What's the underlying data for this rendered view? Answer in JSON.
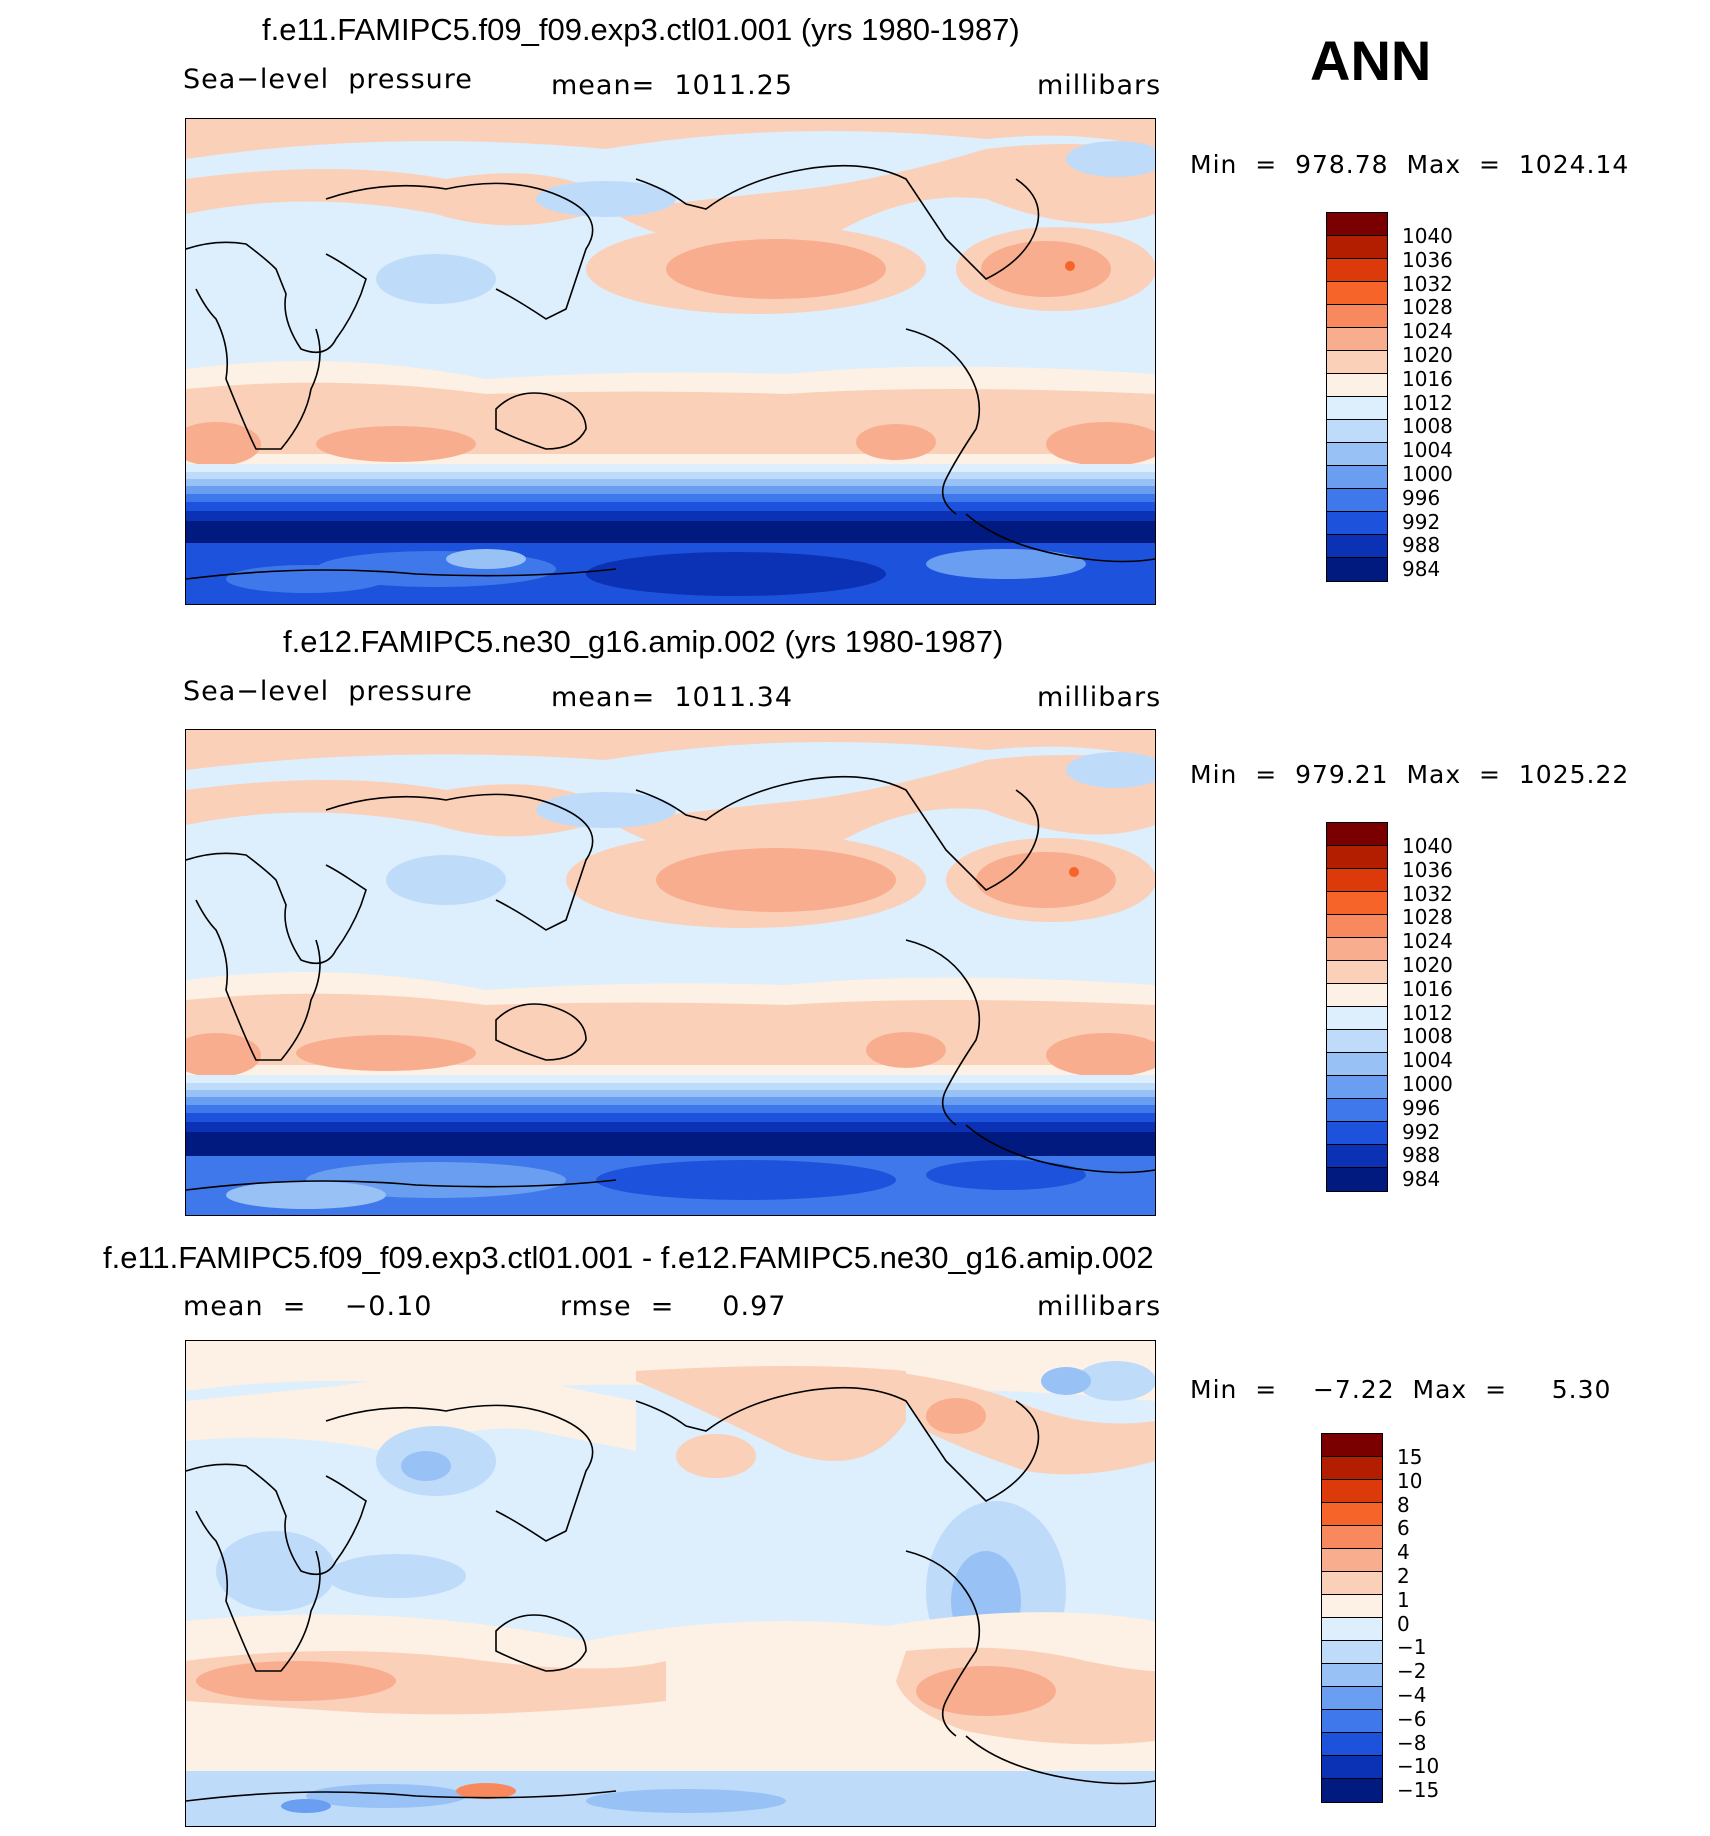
{
  "season": "ANN",
  "panels": [
    {
      "title": "f.e11.FAMIPC5.f09_f09.exp3.ctl01.001 (yrs 1980-1987)",
      "left_label": "Sea−level  pressure",
      "center_label": "mean=  1011.25",
      "units": "millibars",
      "minmax": "Min  =  978.78  Max  =  1024.14",
      "colorbar_levels": [
        "1040",
        "1036",
        "1032",
        "1028",
        "1024",
        "1020",
        "1016",
        "1012",
        "1008",
        "1004",
        "1000",
        "996",
        "992",
        "988",
        "984"
      ]
    },
    {
      "title": "f.e12.FAMIPC5.ne30_g16.amip.002 (yrs 1980-1987)",
      "left_label": "Sea−level  pressure",
      "center_label": "mean=  1011.34",
      "units": "millibars",
      "minmax": "Min  =  979.21  Max  =  1025.22",
      "colorbar_levels": [
        "1040",
        "1036",
        "1032",
        "1028",
        "1024",
        "1020",
        "1016",
        "1012",
        "1008",
        "1004",
        "1000",
        "996",
        "992",
        "988",
        "984"
      ]
    },
    {
      "title": "f.e11.FAMIPC5.f09_f09.exp3.ctl01.001 - f.e12.FAMIPC5.ne30_g16.amip.002",
      "left_label": "mean  =    −0.10",
      "center_label": "rmse  =     0.97",
      "units": "millibars",
      "minmax": "Min  =    −7.22  Max  =     5.30",
      "colorbar_levels": [
        "15",
        "10",
        "8",
        "6",
        "4",
        "2",
        "1",
        "0",
        "−1",
        "−2",
        "−4",
        "−6",
        "−8",
        "−10",
        "−15"
      ]
    }
  ],
  "colors": {
    "abs_palette": [
      "#7a0000",
      "#b31d00",
      "#dc3a0a",
      "#f7642a",
      "#f8895e",
      "#f9ad8f",
      "#fbd0b9",
      "#fdf0e4",
      "#ddeefc",
      "#bedcfa",
      "#98c1f6",
      "#6a9ef0",
      "#3f78ea",
      "#1d53dc",
      "#0b32b4",
      "#001a80"
    ],
    "diff_palette": [
      "#7a0000",
      "#b31d00",
      "#dc3a0a",
      "#f7642a",
      "#f8895e",
      "#f9ad8f",
      "#fbd0b9",
      "#fdf0e4",
      "#ddeefc",
      "#bedcfa",
      "#98c1f6",
      "#6a9ef0",
      "#3f78ea",
      "#1d53dc",
      "#0b32b4",
      "#001a80"
    ]
  }
}
